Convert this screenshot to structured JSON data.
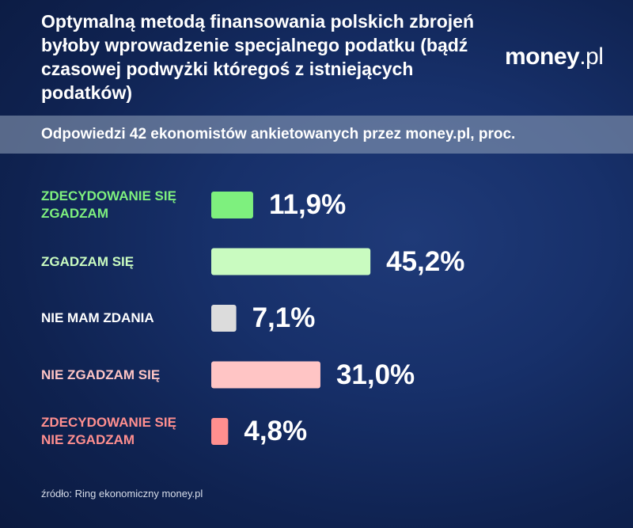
{
  "header": {
    "title": "Optymalną metodą finansowania polskich zbrojeń byłoby wprowadzenie specjalnego podatku (bądź czasowej podwyżki któregoś z istniejących podatków)",
    "brand_main": "money",
    "brand_dot": ".",
    "brand_suffix": "pl",
    "subtitle": "Odpowiedzi 42 ekonomistów ankietowanych przez money.pl, proc."
  },
  "footer": {
    "source": "źródło: Ring ekonomiczny money.pl"
  },
  "chart_data": {
    "type": "bar",
    "orientation": "horizontal",
    "title": "Optymalną metodą finansowania polskich zbrojeń byłoby wprowadzenie specjalnego podatku (bądź czasowej podwyżki któregoś z istniejących podatków)",
    "subtitle": "Odpowiedzi 42 ekonomistów ankietowanych przez money.pl, proc.",
    "categories": [
      "ZDECYDOWANIE SIĘ ZGADZAM",
      "ZGADZAM SIĘ",
      "NIE MAM ZDANIA",
      "NIE ZGADZAM SIĘ",
      "ZDECYDOWANIE SIĘ NIE ZGADZAM"
    ],
    "values": [
      11.9,
      45.2,
      7.1,
      31.0,
      4.8
    ],
    "value_labels": [
      "11,9%",
      "45,2%",
      "7,1%",
      "31,0%",
      "4,8%"
    ],
    "bar_colors": [
      "#7ef07e",
      "#c9fbc0",
      "#dcdcdc",
      "#ffc5c5",
      "#ff8f8f"
    ],
    "label_colors": [
      "#7ef07e",
      "#c9fbc0",
      "#ffffff",
      "#ffc5c5",
      "#ff8f8f"
    ],
    "xlabel": "",
    "ylabel": "",
    "grid": false,
    "legend": false
  },
  "colors": {
    "background": "#13295c",
    "band": "#7a8aa6",
    "text": "#ffffff"
  }
}
